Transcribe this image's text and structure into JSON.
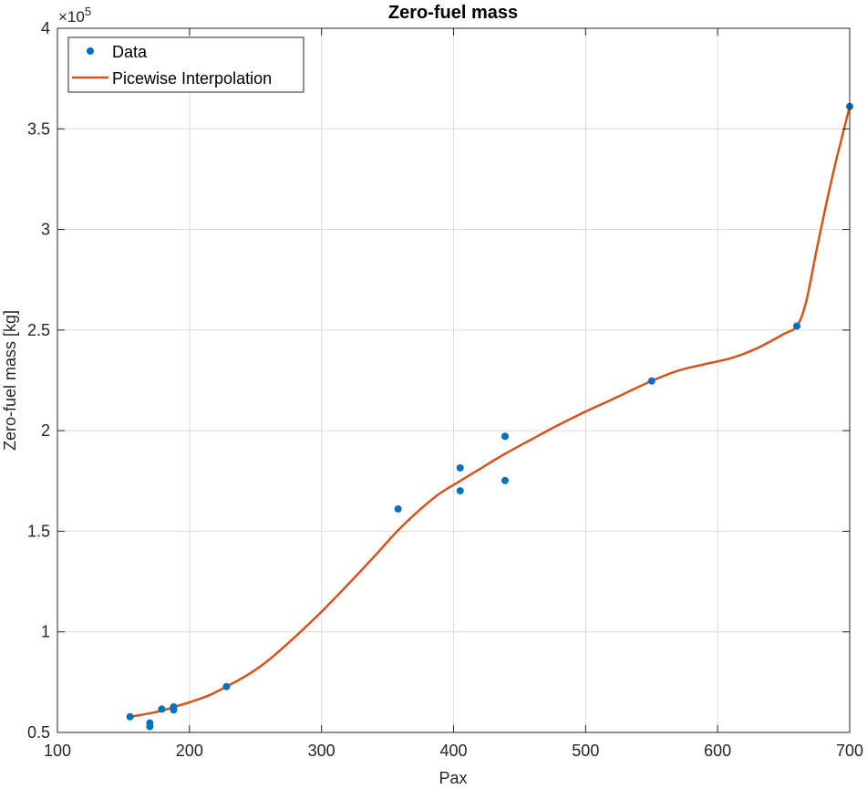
{
  "chart_data": {
    "type": "line",
    "title": "Zero-fuel mass",
    "xlabel": "Pax",
    "ylabel": "Zero-fuel mass [kg]",
    "xlim": [
      100,
      700
    ],
    "ylim": [
      0.5,
      4
    ],
    "y_exponent_label": "×10",
    "y_exponent_power": "5",
    "xticks": [
      100,
      200,
      300,
      400,
      500,
      600,
      700
    ],
    "xtick_labels": [
      "100",
      "200",
      "300",
      "400",
      "500",
      "600",
      "700"
    ],
    "yticks": [
      0.5,
      1,
      1.5,
      2,
      2.5,
      3,
      3.5,
      4
    ],
    "ytick_labels": [
      "0.5",
      "1",
      "1.5",
      "2",
      "2.5",
      "3",
      "3.5",
      "4"
    ],
    "grid": true,
    "legend_position": "top-left",
    "series": [
      {
        "name": "Data",
        "style": "markers",
        "color": "#0072BD",
        "x": [
          155,
          170,
          170,
          179,
          188,
          188,
          228,
          358,
          405,
          405,
          439,
          439,
          550,
          660,
          700
        ],
        "y": [
          0.578,
          0.529,
          0.547,
          0.616,
          0.612,
          0.627,
          0.728,
          1.611,
          1.701,
          1.815,
          1.752,
          1.972,
          2.247,
          2.52,
          3.611
        ]
      },
      {
        "name": "Picewise Interpolation",
        "style": "line",
        "color": "#D95319",
        "x": [
          155,
          170,
          180,
          190,
          200,
          215,
          228,
          245,
          260,
          280,
          300,
          320,
          340,
          358,
          375,
          390,
          405,
          420,
          439,
          460,
          480,
          500,
          520,
          550,
          570,
          590,
          610,
          630,
          650,
          660,
          667,
          675,
          683,
          690,
          695,
          700
        ],
        "y": [
          0.578,
          0.595,
          0.61,
          0.63,
          0.65,
          0.685,
          0.728,
          0.79,
          0.86,
          0.975,
          1.1,
          1.235,
          1.375,
          1.505,
          1.61,
          1.69,
          1.75,
          1.81,
          1.885,
          1.96,
          2.03,
          2.095,
          2.155,
          2.247,
          2.298,
          2.33,
          2.36,
          2.41,
          2.48,
          2.52,
          2.64,
          2.9,
          3.15,
          3.35,
          3.48,
          3.611
        ]
      }
    ]
  }
}
